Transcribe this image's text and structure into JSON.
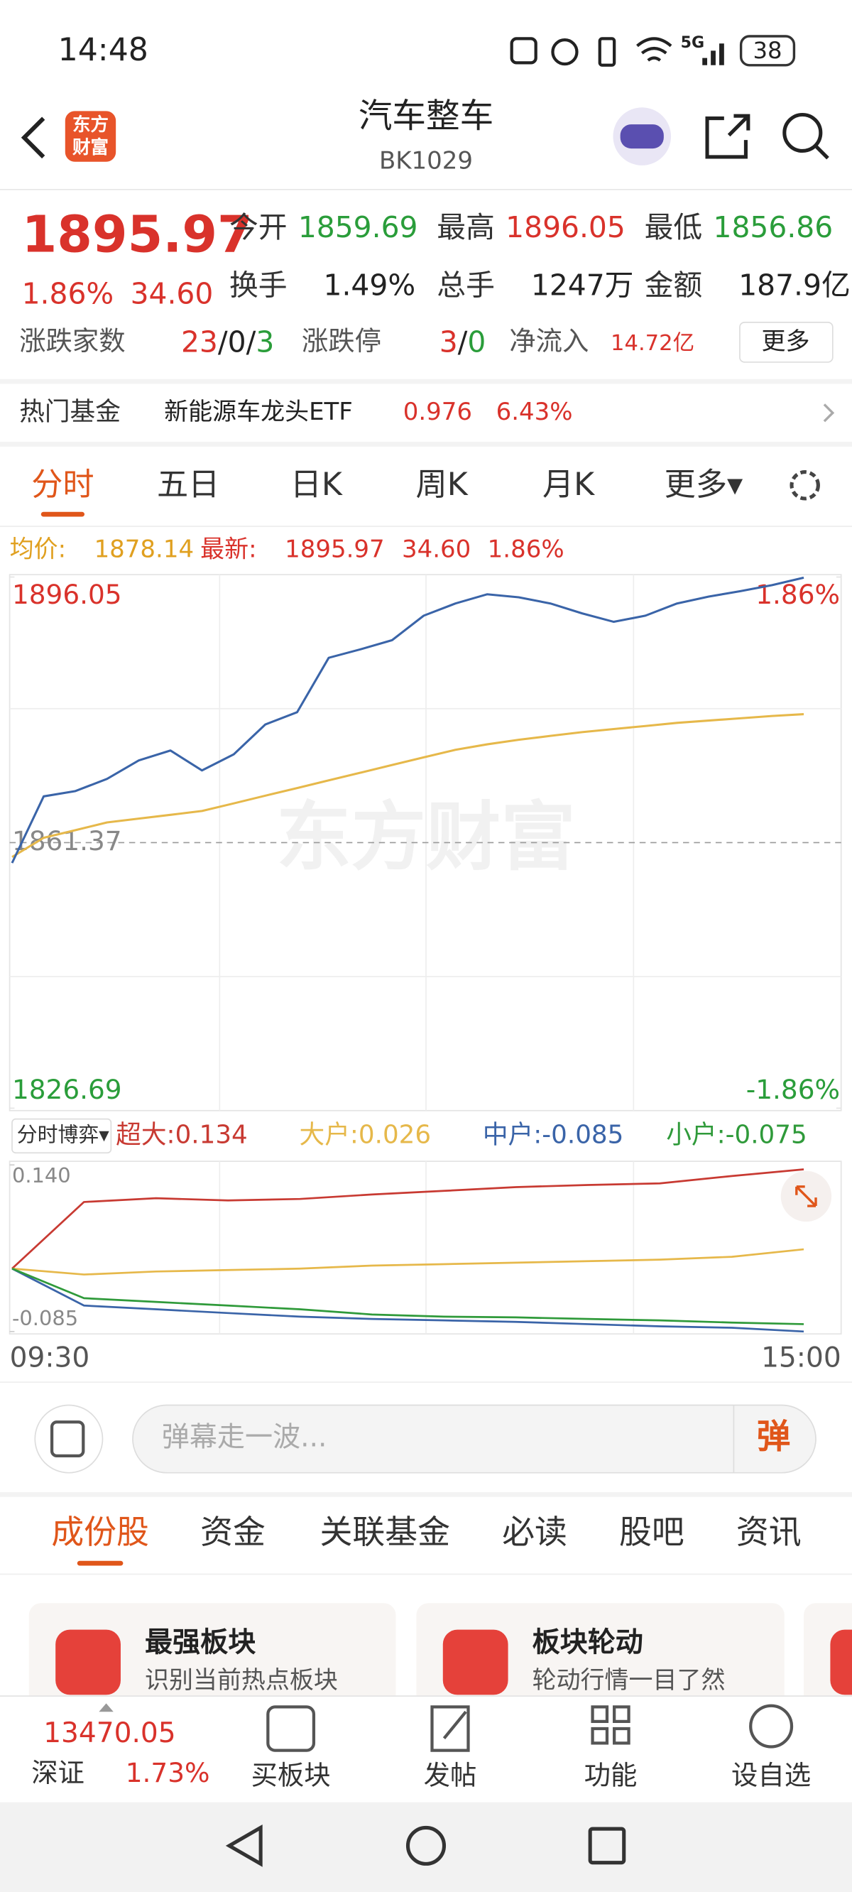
{
  "status_bar": {
    "time": "14:48",
    "battery": "38",
    "network": "5G"
  },
  "header": {
    "logo": [
      "东方",
      "财富"
    ],
    "title": "汽车整车",
    "code": "BK1029"
  },
  "quote": {
    "price": "1895.97",
    "pct": "1.86%",
    "change": "34.60",
    "stats": [
      [
        "今开",
        "1859.69"
      ],
      [
        "最高",
        "1896.05"
      ],
      [
        "最低",
        "1856.86"
      ],
      [
        "换手",
        "1.49%"
      ],
      [
        "总手",
        "1247万"
      ],
      [
        "金额",
        "187.9亿"
      ]
    ],
    "breadth_label": "涨跌家数",
    "breadth": [
      "23",
      "/",
      "0",
      "/",
      "3"
    ],
    "limit_label": "涨跌停",
    "limit": [
      "3",
      "/",
      "0"
    ],
    "inflow_label": "净流入",
    "inflow": "14.72亿",
    "more": "更多"
  },
  "fund": {
    "label": "热门基金",
    "name": "新能源车龙头ETF",
    "price": "0.976",
    "pct": "6.43%"
  },
  "chart_tabs": [
    "分时",
    "五日",
    "日K",
    "周K",
    "月K",
    "更多▾"
  ],
  "info": {
    "avg_label": "均价:",
    "avg": "1878.14",
    "last_label": "最新:",
    "last": "1895.97",
    "change": "34.60",
    "pct": "1.86%"
  },
  "intraday": {
    "type": "line",
    "watermark": "东方财富",
    "ylim": [
      1826.69,
      1896.05
    ],
    "yticks": [
      1826.69,
      1861.37,
      1896.05
    ],
    "y2ticks": [
      {
        "value": -1.86,
        "label": "-1.86%"
      },
      {
        "value": 1.86,
        "label": "1.86%"
      }
    ],
    "series": [
      {
        "name": "最新",
        "color": "#3a64a8",
        "values": [
          1858.7,
          1867.4,
          1868.1,
          1869.7,
          1872.1,
          1873.4,
          1870.8,
          1872.9,
          1876.8,
          1878.4,
          1885.5,
          1886.6,
          1887.8,
          1891.0,
          1892.6,
          1893.8,
          1893.4,
          1892.6,
          1891.3,
          1890.2,
          1891.0,
          1892.6,
          1893.5,
          1894.2,
          1895.0,
          1895.97
        ]
      },
      {
        "name": "均价",
        "color": "#e6b84a",
        "values": [
          1859.5,
          1862,
          1863,
          1864,
          1864.5,
          1865,
          1865.5,
          1866.5,
          1867.5,
          1868.5,
          1869.5,
          1870.5,
          1871.5,
          1872.5,
          1873.5,
          1874.2,
          1874.8,
          1875.3,
          1875.8,
          1876.2,
          1876.6,
          1877,
          1877.3,
          1877.6,
          1877.9,
          1878.14
        ]
      }
    ]
  },
  "flow": {
    "type": "line",
    "selector": "分时博弈▾",
    "ylim": [
      -0.085,
      0.14
    ],
    "yticks": [
      {
        "value": 0.14,
        "label": "0.140"
      },
      -0.085
    ],
    "x_labels": [
      "09:30",
      "15:00"
    ],
    "series": [
      {
        "legend": "超大:0.134",
        "color": "#c83a32",
        "values": [
          0,
          0.09,
          0.095,
          0.092,
          0.094,
          0.1,
          0.105,
          0.11,
          0.113,
          0.115,
          0.125,
          0.134
        ]
      },
      {
        "legend": "大户:0.026",
        "color": "#e6b84a",
        "values": [
          0,
          -0.008,
          -0.004,
          -0.002,
          0,
          0.004,
          0.006,
          0.008,
          0.01,
          0.012,
          0.016,
          0.026
        ]
      },
      {
        "legend": "中户:-0.085",
        "color": "#3a64a8",
        "values": [
          0,
          -0.05,
          -0.055,
          -0.06,
          -0.065,
          -0.068,
          -0.07,
          -0.072,
          -0.075,
          -0.078,
          -0.08,
          -0.085
        ]
      },
      {
        "legend": "小户:-0.075",
        "color": "#2f9a3a",
        "values": [
          0,
          -0.04,
          -0.045,
          -0.05,
          -0.055,
          -0.062,
          -0.065,
          -0.066,
          -0.068,
          -0.07,
          -0.073,
          -0.075
        ]
      }
    ]
  },
  "comment": {
    "placeholder": "弹幕走一波...",
    "button": "弹"
  },
  "tabs": [
    "成份股",
    "资金",
    "关联基金",
    "必读",
    "股吧",
    "资讯"
  ],
  "cards": [
    {
      "title": "最强板块",
      "desc": "识别当前热点板块"
    },
    {
      "title": "板块轮动",
      "desc": "轮动行情一目了然"
    }
  ],
  "bottom": {
    "index_value": "13470.05",
    "index_name": "深证",
    "index_pct": "1.73%",
    "items": [
      "买板块",
      "发帖",
      "功能",
      "设自选"
    ]
  }
}
